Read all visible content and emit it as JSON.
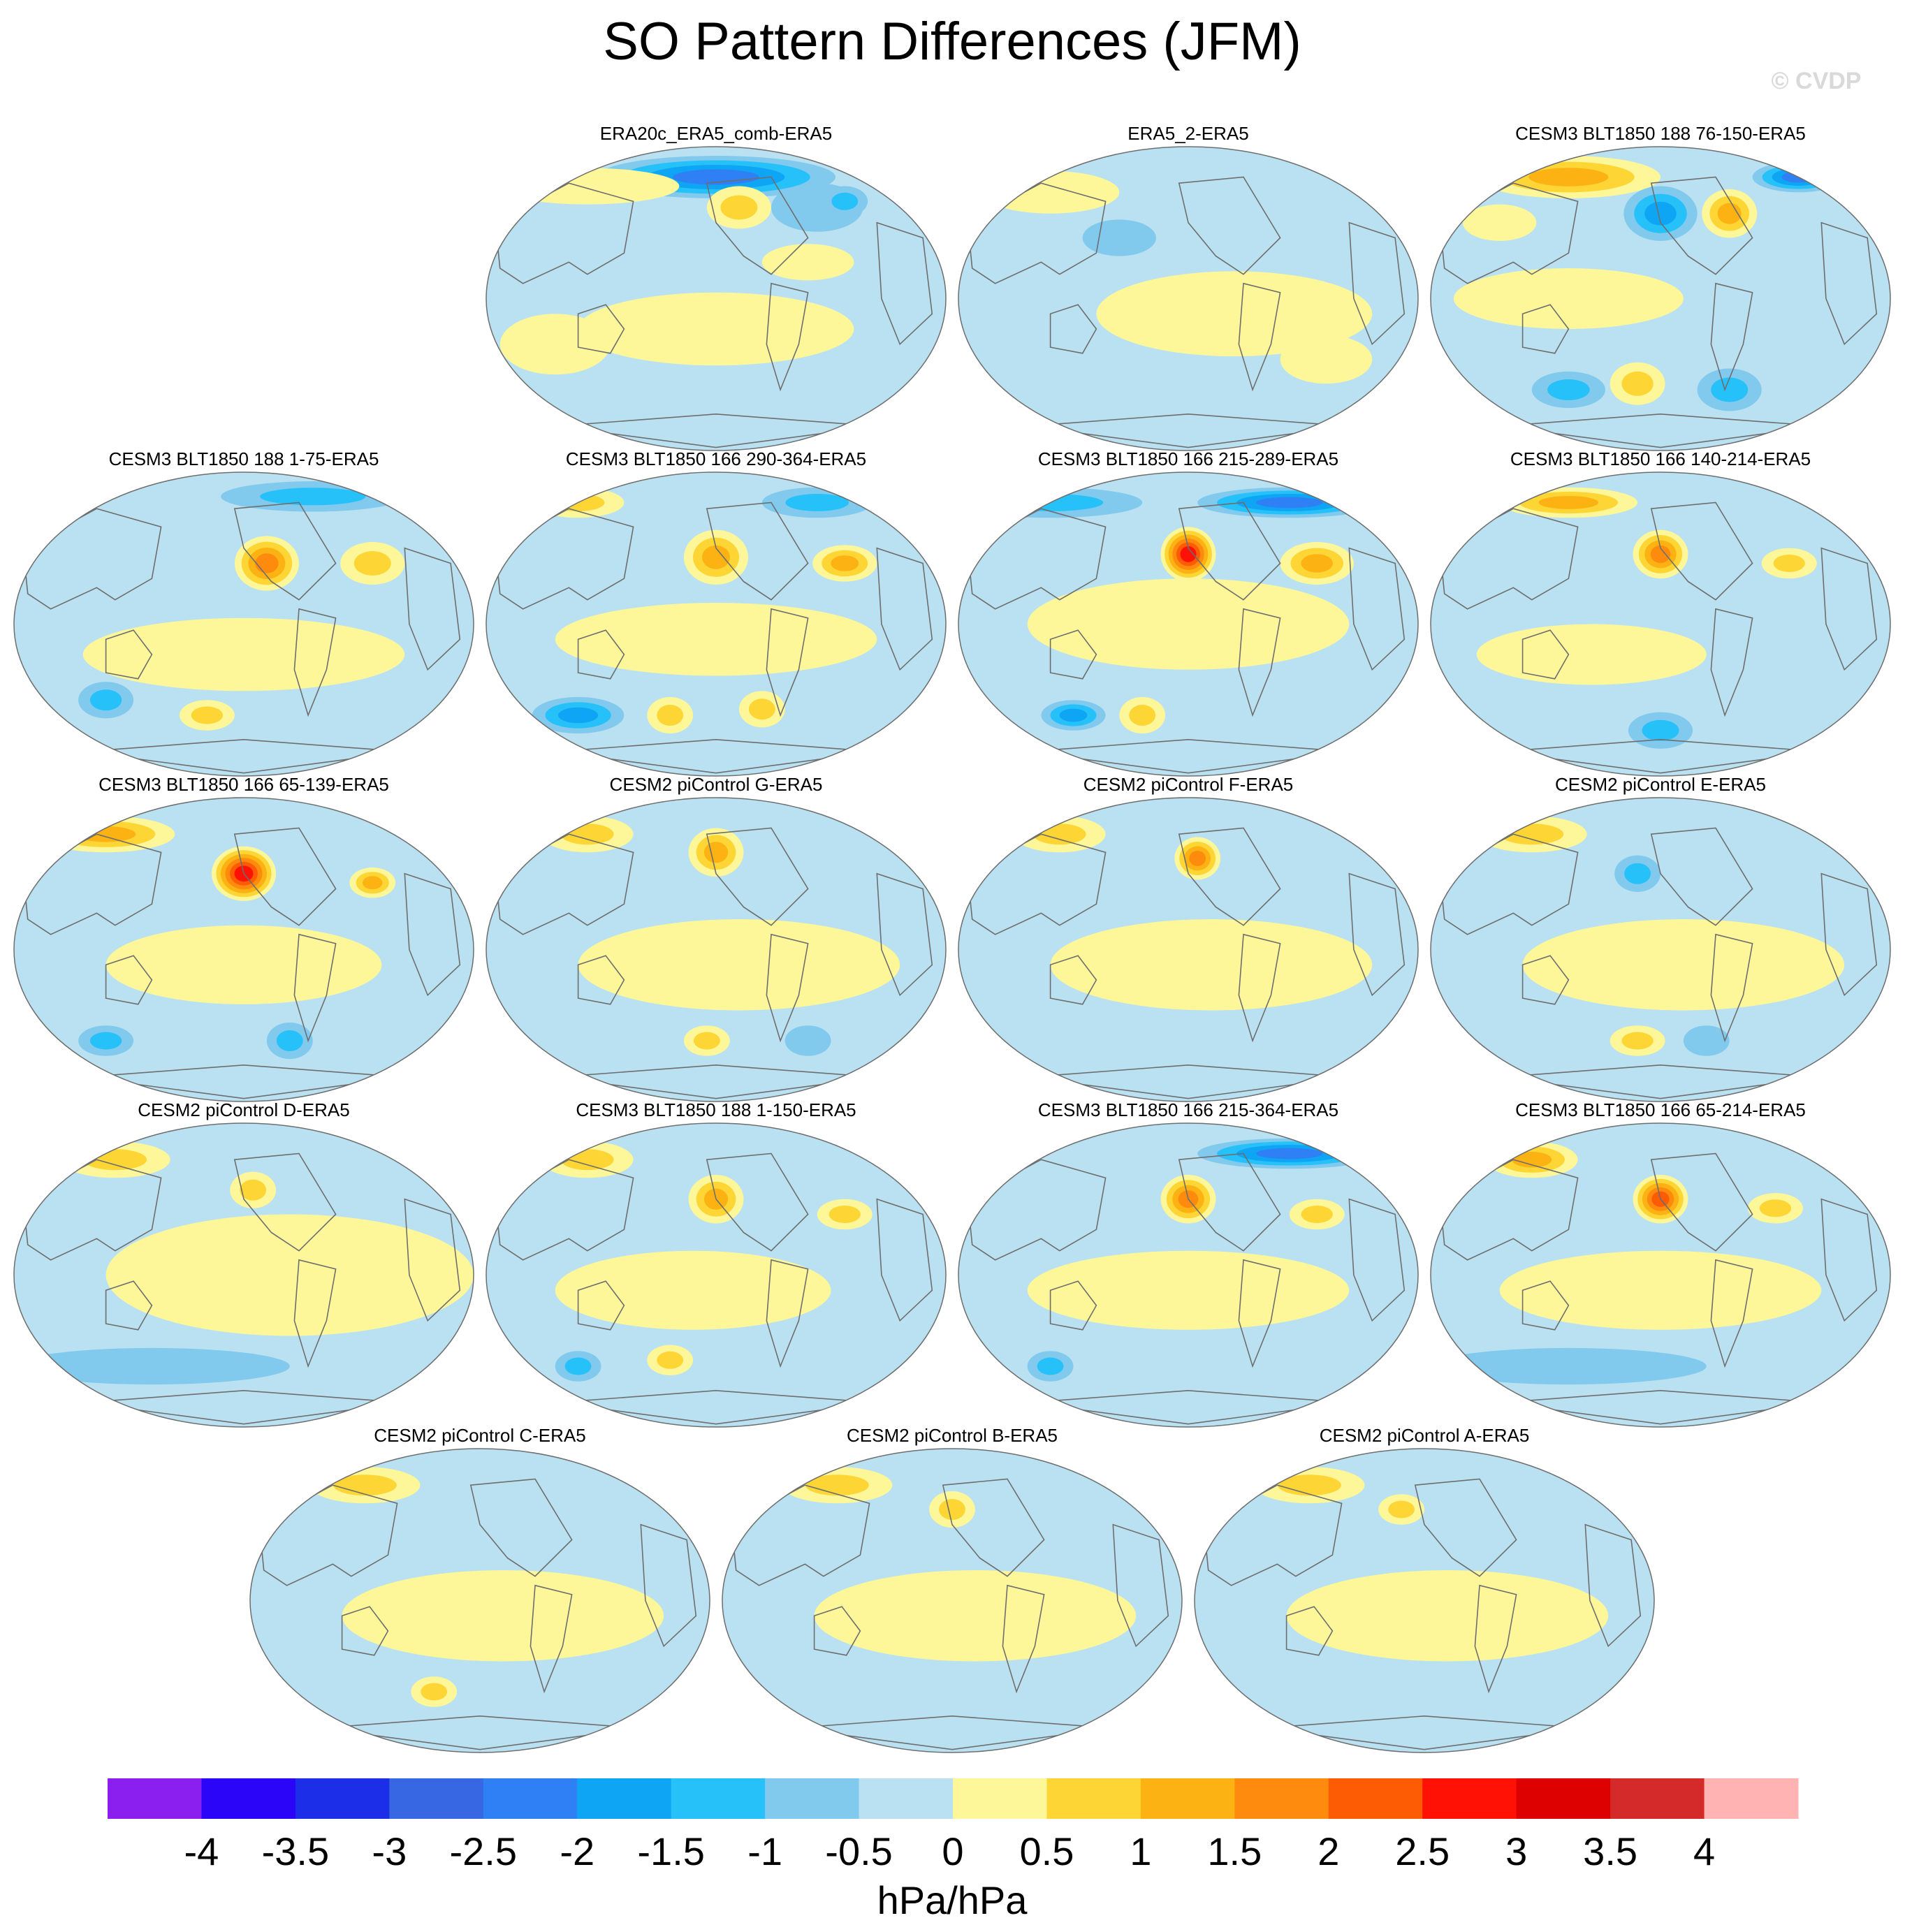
{
  "title": "SO Pattern Differences (JFM)",
  "watermark": "© CVDP",
  "panels": [
    "ERA20c_ERA5_comb-ERA5",
    "ERA5_2-ERA5",
    "CESM3 BLT1850 188 76-150-ERA5",
    "CESM3 BLT1850 188 1-75-ERA5",
    "CESM3 BLT1850 166 290-364-ERA5",
    "CESM3 BLT1850 166 215-289-ERA5",
    "CESM3 BLT1850 166 140-214-ERA5",
    "CESM3 BLT1850 166 65-139-ERA5",
    "CESM2 piControl G-ERA5",
    "CESM2 piControl F-ERA5",
    "CESM2 piControl E-ERA5",
    "CESM2 piControl D-ERA5",
    "CESM3 BLT1850 188 1-150-ERA5",
    "CESM3 BLT1850 166 215-364-ERA5",
    "CESM3 BLT1850 166 65-214-ERA5",
    "CESM2 piControl C-ERA5",
    "CESM2 piControl B-ERA5",
    "CESM2 piControl A-ERA5"
  ],
  "colorbar": {
    "colors": [
      "#8a1ff0",
      "#2a05f8",
      "#1c2ee8",
      "#3767e2",
      "#2f80f4",
      "#0ea5f5",
      "#27c1fa",
      "#82c9ee",
      "#b9e1f1",
      "#fdf79a",
      "#fdd635",
      "#fdb214",
      "#fe8b0e",
      "#fd5c05",
      "#ff1106",
      "#de0102",
      "#d52a2a",
      "#ffb3b3"
    ],
    "tick_labels": [
      "-4",
      "-3.5",
      "-3",
      "-2.5",
      "-2",
      "-1.5",
      "-1",
      "-0.5",
      "0",
      "0.5",
      "1",
      "1.5",
      "2",
      "2.5",
      "3",
      "3.5",
      "4"
    ],
    "units": "hPa/hPa"
  },
  "blobs": [
    [
      [
        0.5,
        0.1,
        0.26,
        0.07,
        4
      ],
      [
        0.22,
        0.13,
        0.2,
        0.06,
        9
      ],
      [
        0.72,
        0.2,
        0.1,
        0.08,
        7
      ],
      [
        0.78,
        0.18,
        0.05,
        0.05,
        6
      ],
      [
        0.55,
        0.2,
        0.07,
        0.07,
        10
      ],
      [
        0.5,
        0.6,
        0.3,
        0.12,
        9
      ],
      [
        0.15,
        0.65,
        0.12,
        0.1,
        9
      ],
      [
        0.7,
        0.38,
        0.1,
        0.06,
        9
      ]
    ],
    [
      [
        0.35,
        0.3,
        0.08,
        0.06,
        7
      ],
      [
        0.6,
        0.55,
        0.3,
        0.14,
        9
      ],
      [
        0.2,
        0.15,
        0.15,
        0.07,
        9
      ],
      [
        0.8,
        0.7,
        0.1,
        0.08,
        9
      ]
    ],
    [
      [
        0.3,
        0.1,
        0.2,
        0.07,
        11
      ],
      [
        0.5,
        0.22,
        0.08,
        0.09,
        5
      ],
      [
        0.65,
        0.22,
        0.06,
        0.08,
        11
      ],
      [
        0.8,
        0.1,
        0.1,
        0.05,
        4
      ],
      [
        0.3,
        0.8,
        0.08,
        0.06,
        6
      ],
      [
        0.45,
        0.78,
        0.06,
        0.07,
        10
      ],
      [
        0.65,
        0.8,
        0.07,
        0.07,
        6
      ],
      [
        0.3,
        0.5,
        0.25,
        0.1,
        9
      ],
      [
        0.15,
        0.25,
        0.08,
        0.06,
        9
      ]
    ],
    [
      [
        0.55,
        0.3,
        0.07,
        0.09,
        12
      ],
      [
        0.78,
        0.3,
        0.07,
        0.07,
        10
      ],
      [
        0.65,
        0.08,
        0.2,
        0.05,
        6
      ],
      [
        0.2,
        0.75,
        0.06,
        0.06,
        6
      ],
      [
        0.42,
        0.8,
        0.06,
        0.05,
        10
      ],
      [
        0.5,
        0.6,
        0.35,
        0.12,
        9
      ]
    ],
    [
      [
        0.5,
        0.28,
        0.07,
        0.09,
        11
      ],
      [
        0.78,
        0.3,
        0.07,
        0.06,
        11
      ],
      [
        0.72,
        0.1,
        0.12,
        0.05,
        6
      ],
      [
        0.2,
        0.1,
        0.1,
        0.05,
        10
      ],
      [
        0.2,
        0.8,
        0.1,
        0.06,
        5
      ],
      [
        0.4,
        0.8,
        0.05,
        0.06,
        10
      ],
      [
        0.6,
        0.78,
        0.05,
        0.06,
        10
      ],
      [
        0.5,
        0.55,
        0.35,
        0.12,
        9
      ]
    ],
    [
      [
        0.5,
        0.27,
        0.06,
        0.09,
        14
      ],
      [
        0.78,
        0.3,
        0.08,
        0.07,
        11
      ],
      [
        0.72,
        0.1,
        0.2,
        0.05,
        4
      ],
      [
        0.2,
        0.1,
        0.2,
        0.05,
        6
      ],
      [
        0.25,
        0.8,
        0.07,
        0.05,
        5
      ],
      [
        0.4,
        0.8,
        0.05,
        0.06,
        10
      ],
      [
        0.5,
        0.5,
        0.35,
        0.15,
        9
      ]
    ],
    [
      [
        0.5,
        0.27,
        0.06,
        0.08,
        12
      ],
      [
        0.78,
        0.3,
        0.06,
        0.05,
        10
      ],
      [
        0.3,
        0.1,
        0.15,
        0.05,
        11
      ],
      [
        0.5,
        0.85,
        0.07,
        0.06,
        6
      ],
      [
        0.35,
        0.6,
        0.25,
        0.1,
        9
      ]
    ],
    [
      [
        0.5,
        0.25,
        0.07,
        0.09,
        14
      ],
      [
        0.78,
        0.28,
        0.05,
        0.05,
        11
      ],
      [
        0.2,
        0.12,
        0.15,
        0.06,
        11
      ],
      [
        0.6,
        0.8,
        0.05,
        0.06,
        6
      ],
      [
        0.2,
        0.8,
        0.06,
        0.05,
        6
      ],
      [
        0.5,
        0.55,
        0.3,
        0.13,
        9
      ]
    ],
    [
      [
        0.5,
        0.18,
        0.06,
        0.08,
        11
      ],
      [
        0.22,
        0.12,
        0.1,
        0.06,
        10
      ],
      [
        0.48,
        0.8,
        0.05,
        0.05,
        10
      ],
      [
        0.55,
        0.55,
        0.35,
        0.15,
        9
      ],
      [
        0.7,
        0.8,
        0.05,
        0.05,
        7
      ]
    ],
    [
      [
        0.52,
        0.2,
        0.05,
        0.07,
        12
      ],
      [
        0.22,
        0.12,
        0.1,
        0.06,
        10
      ],
      [
        0.55,
        0.55,
        0.35,
        0.15,
        9
      ]
    ],
    [
      [
        0.45,
        0.25,
        0.05,
        0.06,
        6
      ],
      [
        0.22,
        0.12,
        0.12,
        0.06,
        10
      ],
      [
        0.45,
        0.8,
        0.06,
        0.05,
        10
      ],
      [
        0.6,
        0.8,
        0.05,
        0.05,
        7
      ],
      [
        0.55,
        0.55,
        0.35,
        0.15,
        9
      ]
    ],
    [
      [
        0.22,
        0.12,
        0.12,
        0.06,
        10
      ],
      [
        0.52,
        0.22,
        0.05,
        0.06,
        10
      ],
      [
        0.6,
        0.5,
        0.4,
        0.2,
        9
      ],
      [
        0.3,
        0.8,
        0.3,
        0.06,
        7
      ]
    ],
    [
      [
        0.5,
        0.25,
        0.06,
        0.08,
        11
      ],
      [
        0.78,
        0.3,
        0.06,
        0.05,
        10
      ],
      [
        0.22,
        0.12,
        0.1,
        0.06,
        10
      ],
      [
        0.2,
        0.8,
        0.05,
        0.05,
        6
      ],
      [
        0.4,
        0.78,
        0.05,
        0.05,
        10
      ],
      [
        0.45,
        0.55,
        0.3,
        0.13,
        9
      ]
    ],
    [
      [
        0.5,
        0.25,
        0.06,
        0.08,
        12
      ],
      [
        0.78,
        0.3,
        0.06,
        0.05,
        10
      ],
      [
        0.72,
        0.1,
        0.2,
        0.05,
        4
      ],
      [
        0.2,
        0.8,
        0.05,
        0.05,
        6
      ],
      [
        0.5,
        0.55,
        0.35,
        0.13,
        9
      ]
    ],
    [
      [
        0.5,
        0.25,
        0.06,
        0.08,
        13
      ],
      [
        0.75,
        0.28,
        0.06,
        0.05,
        10
      ],
      [
        0.22,
        0.12,
        0.1,
        0.06,
        11
      ],
      [
        0.5,
        0.55,
        0.35,
        0.13,
        9
      ],
      [
        0.3,
        0.8,
        0.3,
        0.06,
        7
      ]
    ],
    [
      [
        0.25,
        0.12,
        0.12,
        0.06,
        10
      ],
      [
        0.55,
        0.55,
        0.35,
        0.15,
        9
      ],
      [
        0.4,
        0.8,
        0.05,
        0.05,
        10
      ]
    ],
    [
      [
        0.25,
        0.12,
        0.12,
        0.06,
        10
      ],
      [
        0.55,
        0.55,
        0.35,
        0.15,
        9
      ],
      [
        0.5,
        0.2,
        0.05,
        0.06,
        10
      ]
    ],
    [
      [
        0.25,
        0.12,
        0.12,
        0.06,
        10
      ],
      [
        0.55,
        0.55,
        0.35,
        0.15,
        9
      ],
      [
        0.45,
        0.2,
        0.05,
        0.05,
        10
      ]
    ]
  ]
}
